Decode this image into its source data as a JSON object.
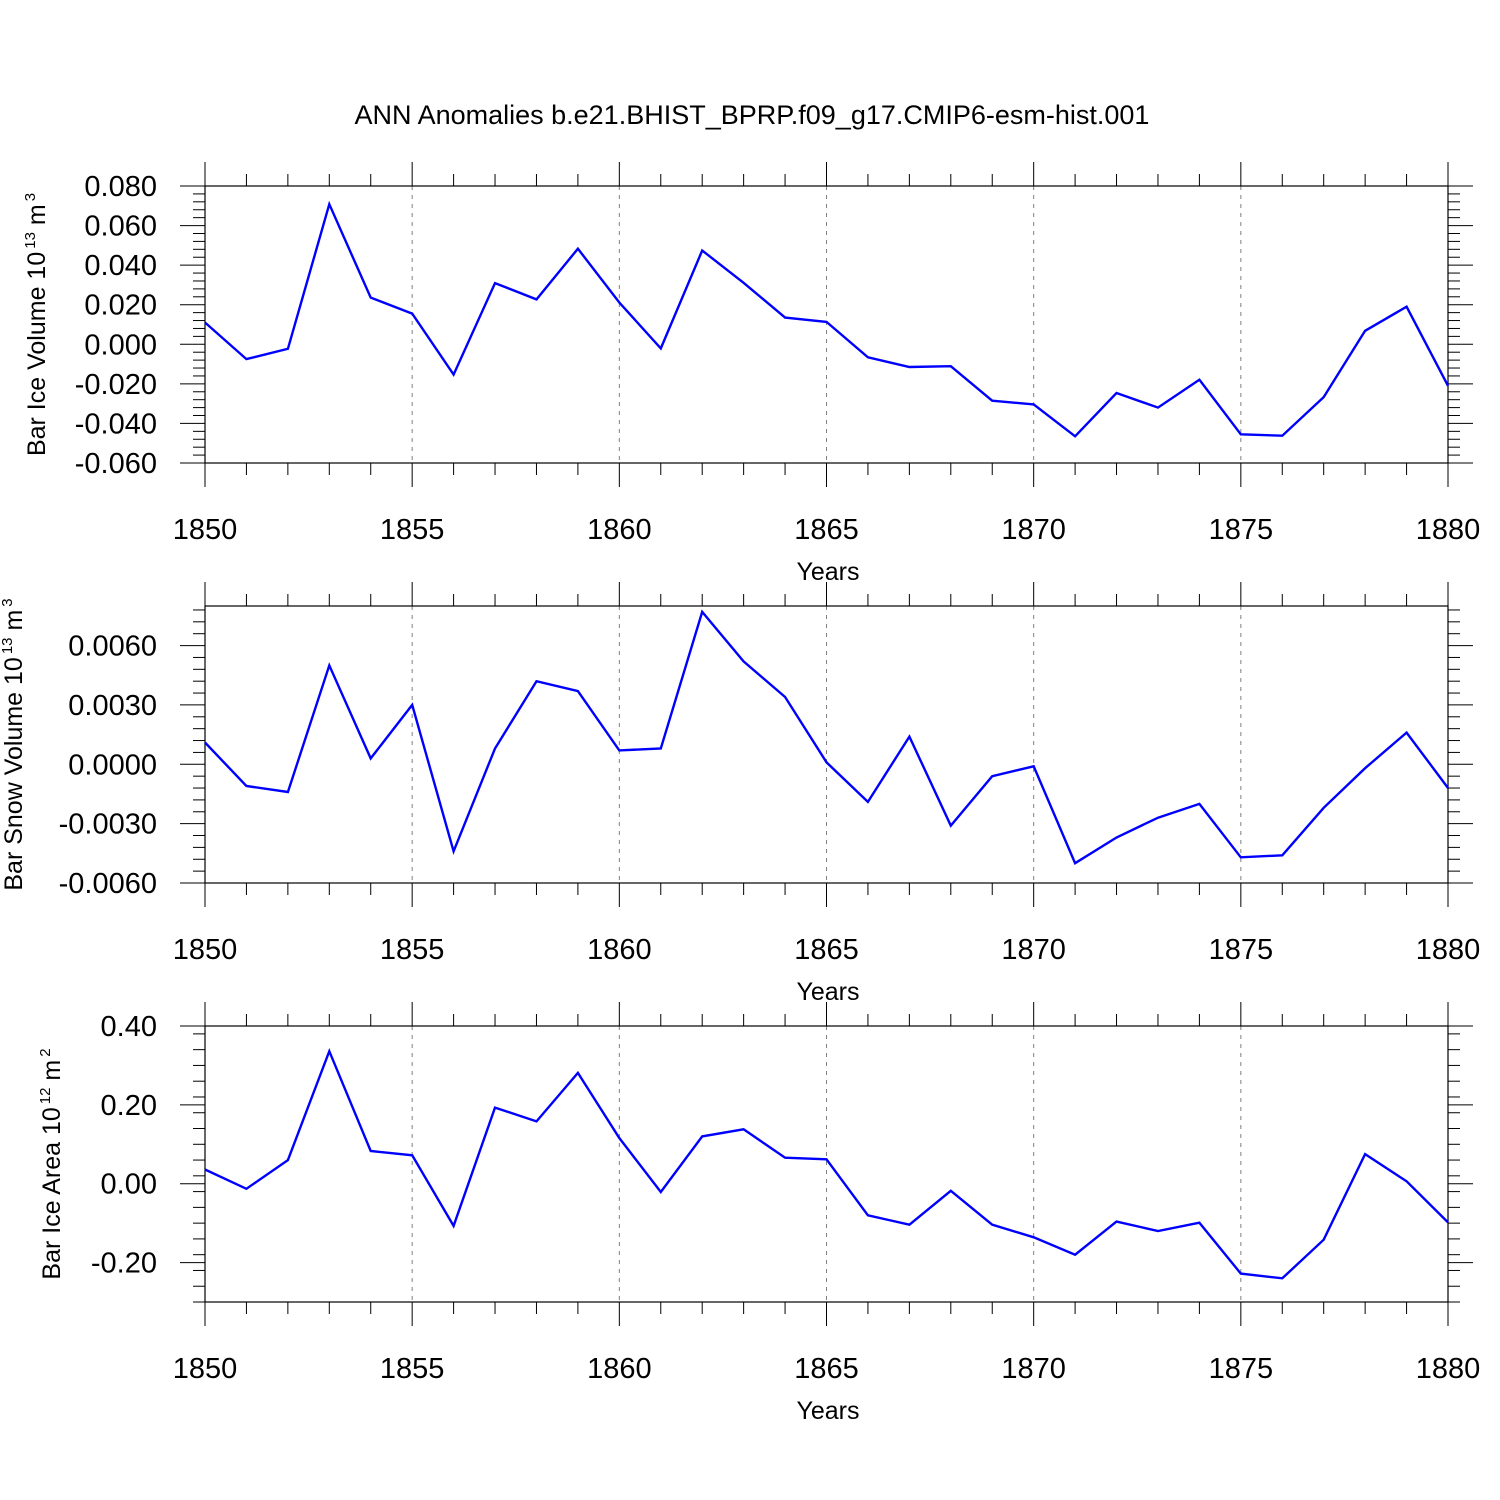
{
  "title": "ANN Anomalies b.e21.BHIST_BPRP.f09_g17.CMIP6-esm-hist.001",
  "colors": {
    "line": "#0000ff",
    "axis": "#000000",
    "grid": "#808080"
  },
  "chart_data": [
    {
      "type": "line",
      "ylabel": {
        "text": "Bar Ice Volume 10",
        "exp": "13",
        "unit": "m",
        "unit_exp": "3"
      },
      "xlabel": "Years",
      "xlim": [
        1850,
        1880
      ],
      "ylim": [
        -0.06,
        0.08
      ],
      "yticks": [
        -0.06,
        -0.04,
        -0.02,
        0.0,
        0.02,
        0.04,
        0.06,
        0.08
      ],
      "ytick_labels": [
        "-0.060",
        "-0.040",
        "-0.020",
        "0.000",
        "0.020",
        "0.040",
        "0.060",
        "0.080"
      ],
      "xticks": [
        1850,
        1855,
        1860,
        1865,
        1870,
        1875,
        1880
      ],
      "xtick_labels": [
        "1850",
        "1855",
        "1860",
        "1865",
        "1870",
        "1875",
        "1880"
      ],
      "x": [
        1850,
        1851,
        1852,
        1853,
        1854,
        1855,
        1856,
        1857,
        1858,
        1859,
        1860,
        1861,
        1862,
        1863,
        1864,
        1865,
        1866,
        1867,
        1868,
        1869,
        1870,
        1871,
        1872,
        1873,
        1874,
        1875,
        1876,
        1877,
        1878,
        1879,
        1880
      ],
      "values": [
        0.011,
        -0.0075,
        -0.0023,
        0.0708,
        0.0236,
        0.0155,
        -0.0153,
        0.0309,
        0.0227,
        0.0483,
        0.0211,
        -0.0021,
        0.0474,
        0.0311,
        0.0135,
        0.0113,
        -0.0066,
        -0.0115,
        -0.0111,
        -0.0285,
        -0.0304,
        -0.0465,
        -0.0246,
        -0.032,
        -0.0179,
        -0.0455,
        -0.0462,
        -0.0267,
        0.0068,
        0.019,
        -0.021
      ]
    },
    {
      "type": "line",
      "ylabel": {
        "text": "Bar Snow Volume 10",
        "exp": "13",
        "unit": "m",
        "unit_exp": "3"
      },
      "xlabel": "Years",
      "xlim": [
        1850,
        1880
      ],
      "ylim": [
        -0.006,
        0.008
      ],
      "yticks": [
        -0.006,
        -0.003,
        0.0,
        0.003,
        0.006
      ],
      "ytick_labels": [
        "-0.0060",
        "-0.0030",
        "0.0000",
        "0.0030",
        "0.0060"
      ],
      "xticks": [
        1850,
        1855,
        1860,
        1865,
        1870,
        1875,
        1880
      ],
      "xtick_labels": [
        "1850",
        "1855",
        "1860",
        "1865",
        "1870",
        "1875",
        "1880"
      ],
      "x": [
        1850,
        1851,
        1852,
        1853,
        1854,
        1855,
        1856,
        1857,
        1858,
        1859,
        1860,
        1861,
        1862,
        1863,
        1864,
        1865,
        1866,
        1867,
        1868,
        1869,
        1870,
        1871,
        1872,
        1873,
        1874,
        1875,
        1876,
        1877,
        1878,
        1879,
        1880
      ],
      "values": [
        0.0011,
        -0.0011,
        -0.0014,
        0.005,
        0.0003,
        0.003,
        -0.0044,
        0.0008,
        0.0042,
        0.0037,
        0.0007,
        0.0008,
        0.0077,
        0.0052,
        0.0034,
        0.0001,
        -0.0019,
        0.0014,
        -0.0031,
        -0.0006,
        -0.0001,
        -0.005,
        -0.0037,
        -0.0027,
        -0.002,
        -0.0047,
        -0.0046,
        -0.0022,
        -0.0002,
        0.0016,
        -0.0012
      ]
    },
    {
      "type": "line",
      "ylabel": {
        "text": "Bar Ice Area 10",
        "exp": "12",
        "unit": "m",
        "unit_exp": "2"
      },
      "xlabel": "Years",
      "xlim": [
        1850,
        1880
      ],
      "ylim": [
        -0.3,
        0.4
      ],
      "yticks": [
        -0.2,
        0.0,
        0.2,
        0.4
      ],
      "ytick_labels": [
        "-0.20",
        "0.00",
        "0.20",
        "0.40"
      ],
      "xticks": [
        1850,
        1855,
        1860,
        1865,
        1870,
        1875,
        1880
      ],
      "xtick_labels": [
        "1850",
        "1855",
        "1860",
        "1865",
        "1870",
        "1875",
        "1880"
      ],
      "x": [
        1850,
        1851,
        1852,
        1853,
        1854,
        1855,
        1856,
        1857,
        1858,
        1859,
        1860,
        1861,
        1862,
        1863,
        1864,
        1865,
        1866,
        1867,
        1868,
        1869,
        1870,
        1871,
        1872,
        1873,
        1874,
        1875,
        1876,
        1877,
        1878,
        1879,
        1880
      ],
      "values": [
        0.036,
        -0.013,
        0.06,
        0.336,
        0.083,
        0.072,
        -0.107,
        0.193,
        0.158,
        0.281,
        0.116,
        -0.021,
        0.12,
        0.138,
        0.066,
        0.062,
        -0.08,
        -0.104,
        -0.018,
        -0.104,
        -0.136,
        -0.18,
        -0.096,
        -0.12,
        -0.099,
        -0.228,
        -0.24,
        -0.142,
        0.075,
        0.006,
        -0.098
      ]
    }
  ]
}
